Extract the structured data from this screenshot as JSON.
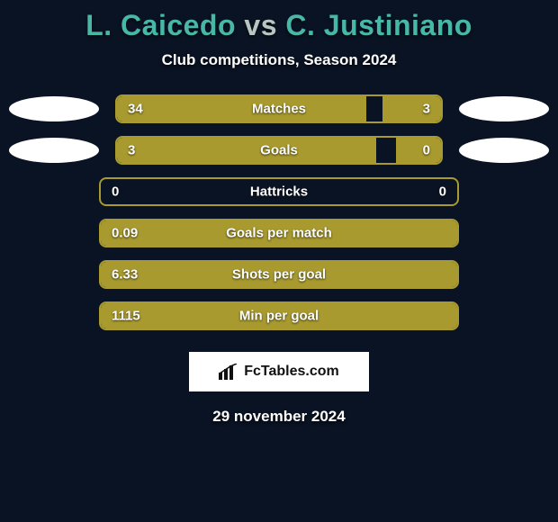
{
  "background_color": "#0a1323",
  "title": {
    "player1": "L. Caicedo",
    "vs": "vs",
    "player2": "C. Justiniano",
    "color_p1": "#47b7a8",
    "color_vs": "#b6c6c2",
    "color_p2": "#47b7a8",
    "fontsize": 32
  },
  "subtitle": {
    "text": "Club competitions, Season 2024",
    "fontsize": 17,
    "color": "#ffffff"
  },
  "bars": {
    "track_border_color": "#a89a2e",
    "fill_color": "#a89a2e",
    "value_color": "#ffffff",
    "label_color": "#ffffff",
    "height": 32,
    "border_radius": 8
  },
  "oval": {
    "color": "#ffffff",
    "width": 100,
    "height": 28
  },
  "rows": [
    {
      "label": "Matches",
      "left_value": "34",
      "right_value": "3",
      "left_pct": 77,
      "right_pct": 18,
      "show_ovals": true
    },
    {
      "label": "Goals",
      "left_value": "3",
      "right_value": "0",
      "left_pct": 80,
      "right_pct": 14,
      "show_ovals": true
    },
    {
      "label": "Hattricks",
      "left_value": "0",
      "right_value": "0",
      "left_pct": 0,
      "right_pct": 0,
      "show_ovals": false
    },
    {
      "label": "Goals per match",
      "left_value": "0.09",
      "right_value": "",
      "left_pct": 100,
      "right_pct": 0,
      "show_ovals": false
    },
    {
      "label": "Shots per goal",
      "left_value": "6.33",
      "right_value": "",
      "left_pct": 100,
      "right_pct": 0,
      "show_ovals": false
    },
    {
      "label": "Min per goal",
      "left_value": "1115",
      "right_value": "",
      "left_pct": 100,
      "right_pct": 0,
      "show_ovals": false
    }
  ],
  "logo": {
    "text": "FcTables.com",
    "box_bg": "#ffffff",
    "text_color": "#111111",
    "fontsize": 16
  },
  "date": {
    "text": "29 november 2024",
    "fontsize": 17,
    "color": "#ffffff"
  }
}
